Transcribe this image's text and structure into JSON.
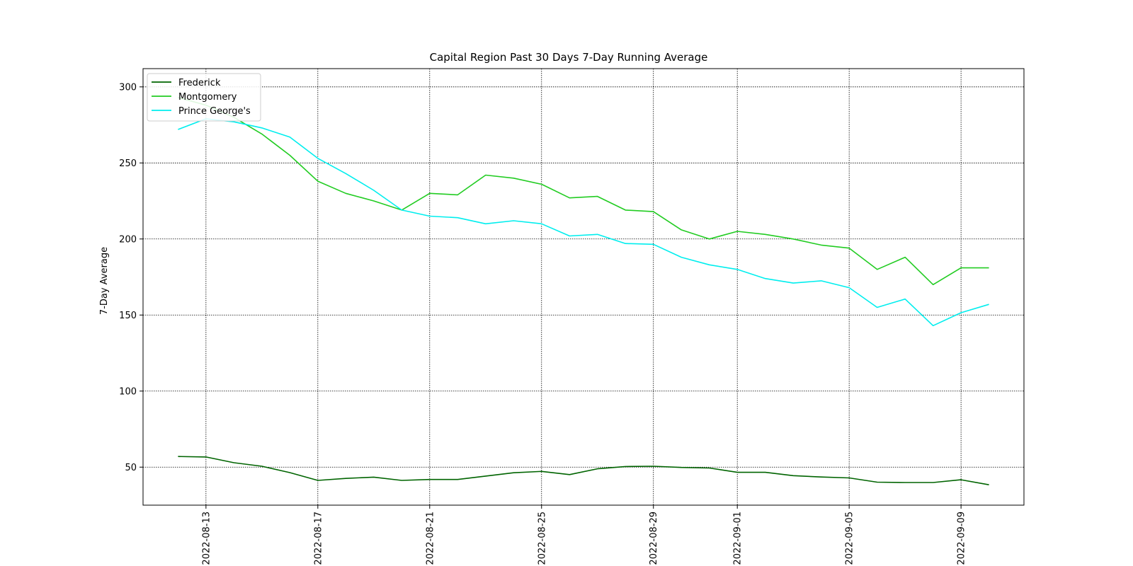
{
  "chart_data": {
    "type": "line",
    "title": "Capital Region Past 30 Days 7-Day Running Average",
    "xlabel": "",
    "ylabel": "7-Day Average",
    "x": [
      "2022-08-12",
      "2022-08-13",
      "2022-08-14",
      "2022-08-15",
      "2022-08-16",
      "2022-08-17",
      "2022-08-18",
      "2022-08-19",
      "2022-08-20",
      "2022-08-21",
      "2022-08-22",
      "2022-08-23",
      "2022-08-24",
      "2022-08-25",
      "2022-08-26",
      "2022-08-27",
      "2022-08-28",
      "2022-08-29",
      "2022-08-30",
      "2022-08-31",
      "2022-09-01",
      "2022-09-02",
      "2022-09-03",
      "2022-09-04",
      "2022-09-05",
      "2022-09-06",
      "2022-09-07",
      "2022-09-08",
      "2022-09-09",
      "2022-09-10"
    ],
    "x_ticks": [
      "2022-08-13",
      "2022-08-17",
      "2022-08-21",
      "2022-08-25",
      "2022-08-29",
      "2022-09-01",
      "2022-09-05",
      "2022-09-09"
    ],
    "y_ticks": [
      50,
      100,
      150,
      200,
      250,
      300
    ],
    "ylim": [
      25,
      312
    ],
    "grid": true,
    "legend_position": "upper-left",
    "series": [
      {
        "name": "Frederick",
        "color": "#006400",
        "values": [
          57.0,
          56.7,
          52.9,
          50.6,
          46.4,
          41.3,
          42.6,
          43.4,
          41.3,
          41.9,
          41.9,
          44.1,
          46.3,
          47.2,
          45.1,
          48.9,
          50.4,
          50.6,
          49.8,
          49.4,
          46.6,
          46.6,
          44.4,
          43.5,
          42.9,
          40.1,
          39.9,
          39.9,
          41.7,
          38.4
        ]
      },
      {
        "name": "Montgomery",
        "color": "#22cc22",
        "values": [
          293.0,
          288.0,
          280.0,
          269.0,
          255.0,
          238.0,
          230.0,
          225.0,
          219.0,
          230.0,
          229.0,
          242.0,
          240.0,
          236.0,
          227.0,
          228.0,
          219.0,
          218.0,
          206.0,
          200.0,
          205.0,
          203.0,
          200.0,
          196.0,
          194.0,
          180.0,
          188.0,
          170.0,
          181.0,
          181.0
        ]
      },
      {
        "name": "Prince George's",
        "color": "#00eeee",
        "values": [
          272.0,
          279.0,
          277.0,
          273.0,
          267.0,
          253.0,
          243.0,
          232.0,
          219.0,
          215.0,
          214.0,
          210.0,
          212.0,
          210.0,
          202.0,
          203.0,
          197.0,
          196.5,
          188.0,
          183.0,
          180.0,
          174.0,
          171.0,
          172.5,
          168.0,
          155.0,
          160.5,
          143.0,
          151.5,
          157.0
        ]
      }
    ]
  }
}
